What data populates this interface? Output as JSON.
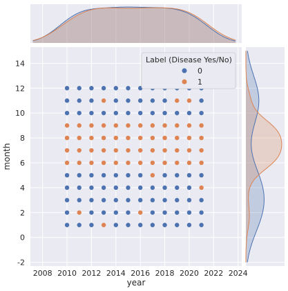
{
  "chart_data": {
    "type": "scatter",
    "title": "",
    "xlabel": "year",
    "ylabel": "month",
    "xlim": [
      2007,
      2024.3
    ],
    "ylim": [
      -2.3,
      15.3
    ],
    "x_ticks": [
      "2008",
      "2010",
      "2012",
      "2014",
      "2016",
      "2018",
      "2020",
      "2022",
      "2024"
    ],
    "y_ticks": [
      "-2",
      "0",
      "2",
      "4",
      "6",
      "8",
      "10",
      "12",
      "14"
    ],
    "grid": true,
    "legend": {
      "title": "Label (Disease Yes/No)",
      "placement": "top-right",
      "entries": [
        "0",
        "1"
      ]
    },
    "colors": {
      "0": "#4c72b0",
      "1": "#dd8452",
      "background": "#eaeaf2",
      "grid": "#ffffff"
    },
    "years": [
      2010,
      2011,
      2012,
      2013,
      2014,
      2015,
      2016,
      2017,
      2018,
      2019,
      2020,
      2021
    ],
    "series": [
      {
        "name": "0",
        "label_value": 0
      },
      {
        "name": "1",
        "label_value": 1
      }
    ],
    "points_by_month": [
      {
        "month": 12,
        "labels": [
          0,
          0,
          0,
          0,
          0,
          0,
          0,
          0,
          0,
          0,
          0,
          0
        ]
      },
      {
        "month": 11,
        "labels": [
          0,
          0,
          0,
          1,
          0,
          0,
          0,
          0,
          0,
          1,
          1,
          0
        ]
      },
      {
        "month": 10,
        "labels": [
          0,
          0,
          0,
          0,
          0,
          0,
          0,
          0,
          0,
          0,
          0,
          0
        ]
      },
      {
        "month": 9,
        "labels": [
          1,
          1,
          1,
          1,
          1,
          1,
          1,
          1,
          1,
          1,
          1,
          1
        ]
      },
      {
        "month": 8,
        "labels": [
          1,
          1,
          1,
          1,
          1,
          1,
          1,
          1,
          1,
          1,
          1,
          1
        ]
      },
      {
        "month": 7,
        "labels": [
          1,
          1,
          1,
          1,
          1,
          1,
          1,
          1,
          1,
          1,
          1,
          1
        ]
      },
      {
        "month": 6,
        "labels": [
          1,
          1,
          1,
          1,
          1,
          1,
          1,
          1,
          1,
          1,
          1,
          1
        ]
      },
      {
        "month": 5,
        "labels": [
          0,
          0,
          0,
          0,
          0,
          0,
          0,
          1,
          0,
          0,
          0,
          0
        ]
      },
      {
        "month": 4,
        "labels": [
          0,
          0,
          0,
          0,
          0,
          0,
          0,
          0,
          0,
          0,
          0,
          1
        ]
      },
      {
        "month": 3,
        "labels": [
          0,
          0,
          0,
          0,
          0,
          0,
          0,
          0,
          0,
          0,
          0,
          0
        ]
      },
      {
        "month": 2,
        "labels": [
          0,
          1,
          0,
          0,
          0,
          0,
          1,
          0,
          0,
          0,
          0,
          0
        ]
      },
      {
        "month": 1,
        "labels": [
          0,
          0,
          0,
          1,
          0,
          0,
          0,
          0,
          0,
          0,
          0,
          0
        ]
      }
    ]
  }
}
